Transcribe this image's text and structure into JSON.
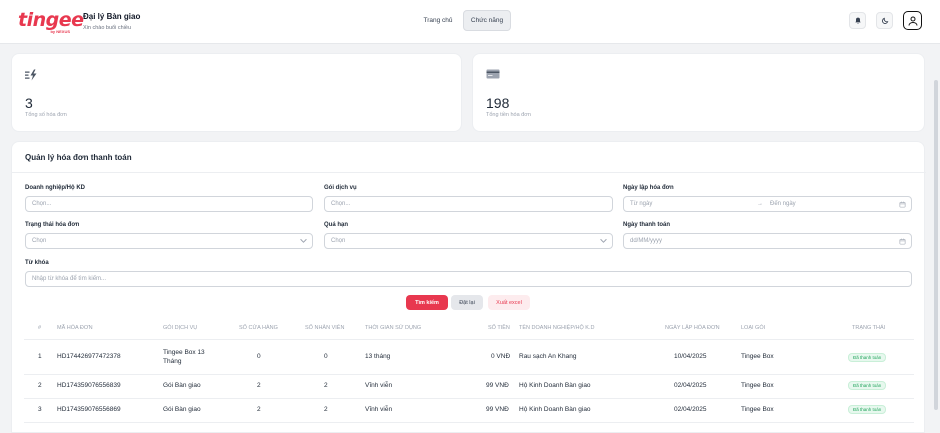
{
  "header": {
    "logo_text": "tingee",
    "logo_sub": "by NEXUS",
    "agency_title": "Đại lý Bàn giao",
    "greeting": "Xin chào buổi chiều",
    "nav": [
      "Trang chủ",
      "Chức năng"
    ]
  },
  "stats": [
    {
      "value": "3",
      "label": "Tổng số hóa đơn",
      "icon": "lightning-list-icon"
    },
    {
      "value": "198",
      "label": "Tổng tiền hóa đơn",
      "icon": "credit-card-icon"
    }
  ],
  "main": {
    "title": "Quản lý hóa đơn thanh toán",
    "filters": {
      "business": {
        "label": "Doanh nghiệp/Hộ KD",
        "placeholder": "Chọn..."
      },
      "service": {
        "label": "Gói dịch vụ",
        "placeholder": "Chọn..."
      },
      "invoice_date": {
        "label": "Ngày lập hóa đơn",
        "from": "Từ ngày",
        "to": "Đến ngày"
      },
      "status": {
        "label": "Trạng thái hóa đơn",
        "placeholder": "Chọn"
      },
      "overdue": {
        "label": "Quá hạn",
        "placeholder": "Chọn"
      },
      "pay_date": {
        "label": "Ngày thanh toán",
        "placeholder": "dd/MM/yyyy"
      },
      "keyword": {
        "label": "Từ khóa",
        "placeholder": "Nhập từ khóa để tìm kiếm..."
      }
    },
    "buttons": {
      "search": "Tìm kiếm",
      "reset": "Đặt lại",
      "excel": "Xuất excel"
    }
  },
  "table": {
    "headers": [
      "#",
      "Mã hóa đơn",
      "Gói dịch vụ",
      "Số cửa hàng",
      "Số nhân viên",
      "Thời gian sử dụng",
      "Số tiền",
      "Tên doanh nghiệp/Hộ K.D",
      "Ngày lập hóa đơn",
      "Loại gói",
      "Trạng thái"
    ],
    "rows": [
      {
        "idx": "1",
        "code": "HD174426977472378",
        "service": "Tingee Box 13 Tháng",
        "stores": "0",
        "staff": "0",
        "duration": "13 tháng",
        "amount": "0 VNĐ",
        "business": "Rau sạch An Khang",
        "date": "10/04/2025",
        "type": "Tingee Box",
        "status": "Đã thanh toán"
      },
      {
        "idx": "2",
        "code": "HD174359076556839",
        "service": "Gói Bàn giao",
        "stores": "2",
        "staff": "2",
        "duration": "Vĩnh viễn",
        "amount": "99 VNĐ",
        "business": "Hộ Kinh Doanh Bàn giao",
        "date": "02/04/2025",
        "type": "Tingee Box",
        "status": "Đã thanh toán"
      },
      {
        "idx": "3",
        "code": "HD174359076556869",
        "service": "Gói Bàn giao",
        "stores": "2",
        "staff": "2",
        "duration": "Vĩnh viễn",
        "amount": "99 VNĐ",
        "business": "Hộ Kinh Doanh Bàn giao",
        "date": "02/04/2025",
        "type": "Tingee Box",
        "status": "Đã thanh toán"
      }
    ]
  },
  "colors": {
    "brand": "#e8384f",
    "success": "#22a45d"
  }
}
